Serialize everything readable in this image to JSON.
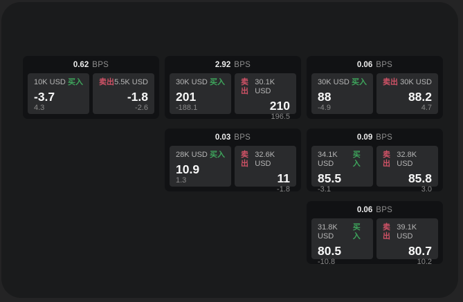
{
  "labels": {
    "buy": "买入",
    "sell": "卖出",
    "unit": "BPS"
  },
  "colors": {
    "buy_green": "#3ea55c",
    "sell_red": "#cf5266"
  },
  "cards": [
    {
      "bps": "0.62",
      "buy": {
        "notional": "10K USD",
        "value": "-3.7",
        "change": "4.3"
      },
      "sell": {
        "notional": "5.5K USD",
        "value": "-1.8",
        "change": "-2.6"
      }
    },
    {
      "bps": "2.92",
      "buy": {
        "notional": "30K USD",
        "value": "201",
        "change": "-188.1"
      },
      "sell": {
        "notional": "30.1K USD",
        "value": "210",
        "change": "196.5"
      }
    },
    {
      "bps": "0.06",
      "buy": {
        "notional": "30K USD",
        "value": "88",
        "change": "-4.9"
      },
      "sell": {
        "notional": "30K USD",
        "value": "88.2",
        "change": "4.7"
      }
    },
    {
      "bps": "0.03",
      "buy": {
        "notional": "28K USD",
        "value": "10.9",
        "change": "1.3"
      },
      "sell": {
        "notional": "32.6K USD",
        "value": "11",
        "change": "-1.8"
      }
    },
    {
      "bps": "0.09",
      "buy": {
        "notional": "34.1K USD",
        "value": "85.5",
        "change": "-3.1"
      },
      "sell": {
        "notional": "32.8K USD",
        "value": "85.8",
        "change": "3.0"
      }
    },
    {
      "bps": "0.06",
      "buy": {
        "notional": "31.8K USD",
        "value": "80.5",
        "change": "-10.8"
      },
      "sell": {
        "notional": "39.1K USD",
        "value": "80.7",
        "change": "10.2"
      }
    }
  ]
}
